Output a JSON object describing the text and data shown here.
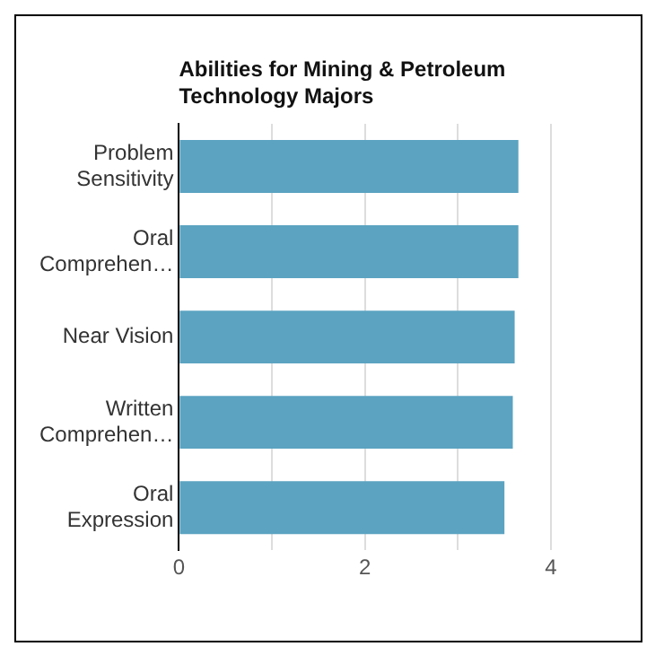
{
  "chart_data": {
    "type": "bar",
    "orientation": "horizontal",
    "title": "Abilities for Mining & Petroleum Technology Majors",
    "categories": [
      "Problem Sensitivity",
      "Oral Comprehen…",
      "Near Vision",
      "Written Comprehen…",
      "Oral Expression"
    ],
    "values": [
      3.65,
      3.65,
      3.61,
      3.59,
      3.5
    ],
    "color": "#5ba3c1",
    "xlim": [
      0,
      4
    ],
    "xticks": [
      0,
      {
        "value": 1,
        "label": null
      },
      2,
      {
        "value": 3,
        "label": null
      },
      4
    ],
    "grid": "x",
    "legend": false
  }
}
